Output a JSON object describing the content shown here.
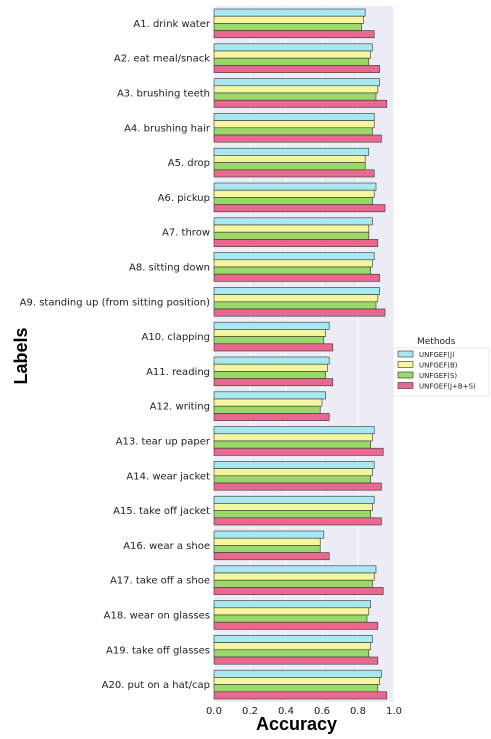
{
  "chart_data": {
    "type": "bar",
    "orientation": "horizontal",
    "xlabel": "Accuracy",
    "ylabel": "Labels",
    "xlim": [
      0.0,
      1.0
    ],
    "xticks": [
      "0.0",
      "0.2",
      "0.4",
      "0.6",
      "0.8",
      "1.0"
    ],
    "grid": true,
    "legend_position": "right",
    "legend_title": "Methods",
    "categories": [
      "A1. drink water",
      "A2. eat meal/snack",
      "A3. brushing teeth",
      "A4. brushing hair",
      "A5. drop",
      "A6. pickup",
      "A7. throw",
      "A8. sitting down",
      "A9. standing up (from sitting position)",
      "A10. clapping",
      "A11. reading",
      "A12. writing",
      "A13. tear up paper",
      "A14. wear jacket",
      "A15. take off jacket",
      "A16. wear a shoe",
      "A17. take off a shoe",
      "A18. wear on glasses",
      "A19. take off glasses",
      "A20. put on a hat/cap"
    ],
    "series": [
      {
        "name": "UNFGEF(J)",
        "color": "#a8e8f0",
        "values": [
          0.84,
          0.88,
          0.92,
          0.89,
          0.86,
          0.9,
          0.88,
          0.89,
          0.92,
          0.64,
          0.64,
          0.62,
          0.89,
          0.89,
          0.89,
          0.61,
          0.9,
          0.87,
          0.88,
          0.93
        ]
      },
      {
        "name": "UNFGEF(B)",
        "color": "#f4f6a0",
        "values": [
          0.83,
          0.87,
          0.91,
          0.89,
          0.84,
          0.89,
          0.86,
          0.88,
          0.91,
          0.62,
          0.63,
          0.6,
          0.88,
          0.88,
          0.88,
          0.59,
          0.89,
          0.86,
          0.87,
          0.92
        ]
      },
      {
        "name": "UNFGEF(S)",
        "color": "#9ad86a",
        "values": [
          0.82,
          0.86,
          0.9,
          0.88,
          0.84,
          0.88,
          0.86,
          0.87,
          0.9,
          0.61,
          0.62,
          0.59,
          0.87,
          0.87,
          0.87,
          0.59,
          0.88,
          0.85,
          0.86,
          0.91
        ]
      },
      {
        "name": "UNFGEF(J+B+S)",
        "color": "#e86890",
        "values": [
          0.89,
          0.92,
          0.96,
          0.93,
          0.89,
          0.95,
          0.91,
          0.92,
          0.95,
          0.66,
          0.66,
          0.64,
          0.94,
          0.93,
          0.93,
          0.64,
          0.94,
          0.91,
          0.91,
          0.96
        ]
      }
    ]
  }
}
